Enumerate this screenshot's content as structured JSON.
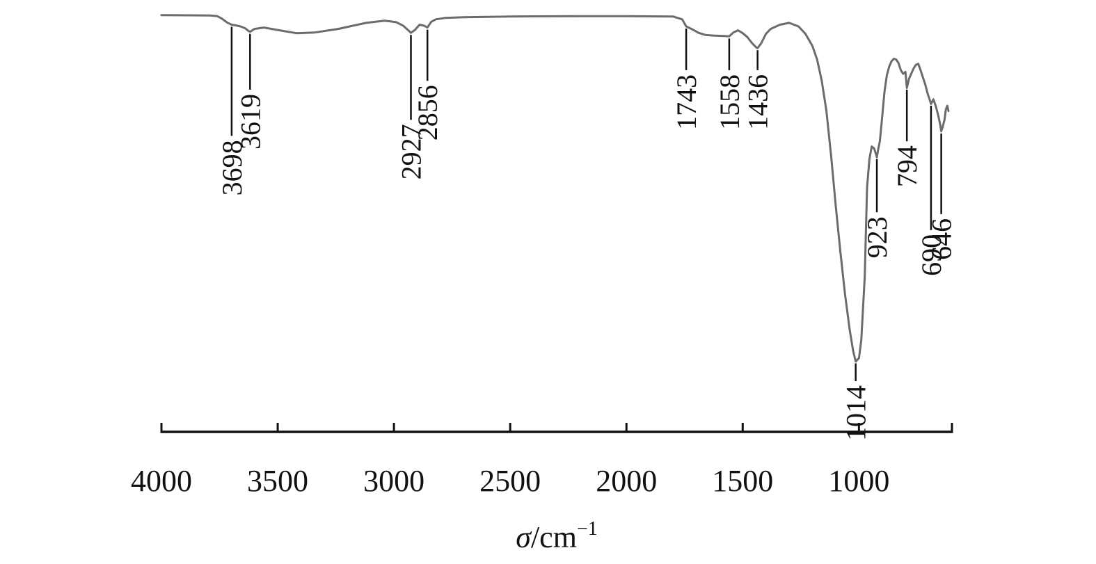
{
  "chart_data": {
    "type": "line",
    "title": "",
    "xlabel_symbol": "σ",
    "xlabel_unit": "/cm",
    "xlabel_exponent": "−1",
    "xlim": [
      4000,
      600
    ],
    "x_reversed": true,
    "x_ticks": [
      4000,
      3500,
      3000,
      2500,
      2000,
      1500,
      1000
    ],
    "x_tick_labels": [
      "4000",
      "3500",
      "3000",
      "2500",
      "2000",
      "1500",
      "1000"
    ],
    "y_axis_shown": false,
    "ylim": [
      0,
      100
    ],
    "grid": false,
    "series": [
      {
        "color": "#6b6b6b",
        "x": [
          4000,
          3790,
          3760,
          3740,
          3715,
          3698,
          3680,
          3660,
          3640,
          3625,
          3619,
          3600,
          3560,
          3500,
          3420,
          3340,
          3240,
          3120,
          3040,
          2990,
          2960,
          2940,
          2927,
          2910,
          2890,
          2870,
          2856,
          2840,
          2820,
          2780,
          2700,
          2500,
          2200,
          2000,
          1800,
          1760,
          1743,
          1720,
          1690,
          1660,
          1620,
          1580,
          1558,
          1540,
          1520,
          1500,
          1480,
          1460,
          1440,
          1436,
          1420,
          1400,
          1380,
          1340,
          1300,
          1260,
          1230,
          1200,
          1180,
          1160,
          1140,
          1120,
          1100,
          1080,
          1060,
          1040,
          1025,
          1014,
          1000,
          990,
          975,
          965,
          955,
          945,
          935,
          925,
          923,
          918,
          910,
          900,
          890,
          880,
          870,
          860,
          850,
          840,
          830,
          820,
          810,
          800,
          794,
          785,
          775,
          765,
          755,
          745,
          735,
          725,
          715,
          705,
          695,
          690,
          680,
          670,
          660,
          650,
          646,
          640,
          632,
          626,
          620,
          615
        ],
        "y": [
          98.5,
          98.4,
          98.2,
          97.5,
          96.3,
          95.8,
          95.6,
          95.3,
          94.8,
          94.0,
          93.8,
          94.6,
          95.0,
          94.3,
          93.4,
          93.6,
          94.6,
          96.3,
          96.9,
          96.5,
          95.5,
          94.3,
          93.5,
          94.3,
          95.8,
          95.5,
          95.0,
          96.6,
          97.3,
          97.7,
          97.9,
          98.1,
          98.2,
          98.2,
          98.1,
          97.3,
          95.3,
          94.6,
          93.5,
          92.9,
          92.7,
          92.6,
          92.5,
          93.6,
          94.2,
          93.4,
          92.3,
          90.6,
          89.3,
          89.2,
          90.6,
          93.2,
          94.6,
          95.8,
          96.3,
          95.3,
          93.2,
          89.8,
          86.0,
          80.0,
          71.5,
          59.0,
          45.0,
          32.0,
          20.0,
          10.0,
          4.0,
          1.0,
          2.0,
          7.0,
          25.0,
          50.0,
          58.0,
          61.5,
          61.0,
          59.0,
          58.5,
          60.5,
          63.0,
          70.0,
          77.0,
          81.5,
          84.0,
          85.5,
          86.2,
          86.0,
          85.0,
          83.0,
          82.0,
          82.5,
          78.0,
          80.5,
          82.0,
          83.5,
          84.5,
          84.8,
          83.0,
          81.0,
          79.0,
          76.5,
          74.5,
          73.5,
          74.8,
          73.0,
          70.5,
          67.5,
          65.8,
          67.0,
          69.0,
          72.0,
          73.0,
          71.5
        ]
      }
    ],
    "peak_labels": [
      {
        "label": "3698",
        "x": 3698,
        "line_top_y": 95.2,
        "line_bottom_y": 64.5
      },
      {
        "label": "3619",
        "x": 3619,
        "line_top_y": 93.2,
        "line_bottom_y": 77.5
      },
      {
        "label": "2927",
        "x": 2927,
        "line_top_y": 92.9,
        "line_bottom_y": 69.0
      },
      {
        "label": "2856",
        "x": 2856,
        "line_top_y": 94.4,
        "line_bottom_y": 80.0
      },
      {
        "label": "1743",
        "x": 1743,
        "line_top_y": 94.7,
        "line_bottom_y": 83.0
      },
      {
        "label": "1558",
        "x": 1558,
        "line_top_y": 91.9,
        "line_bottom_y": 83.0
      },
      {
        "label": "1436",
        "x": 1436,
        "line_top_y": 88.6,
        "line_bottom_y": 83.0
      },
      {
        "label": "1014",
        "x": 1014,
        "line_top_y": 0.5,
        "line_bottom_y": -4.5
      },
      {
        "label": "923",
        "x": 923,
        "line_top_y": 58.0,
        "line_bottom_y": 43.0
      },
      {
        "label": "794",
        "x": 794,
        "line_top_y": 77.5,
        "line_bottom_y": 63.0
      },
      {
        "label": "690",
        "x": 690,
        "line_top_y": 73.0,
        "line_bottom_y": 38.0
      },
      {
        "label": "646",
        "x": 646,
        "line_top_y": 65.2,
        "line_bottom_y": 42.5
      }
    ]
  }
}
